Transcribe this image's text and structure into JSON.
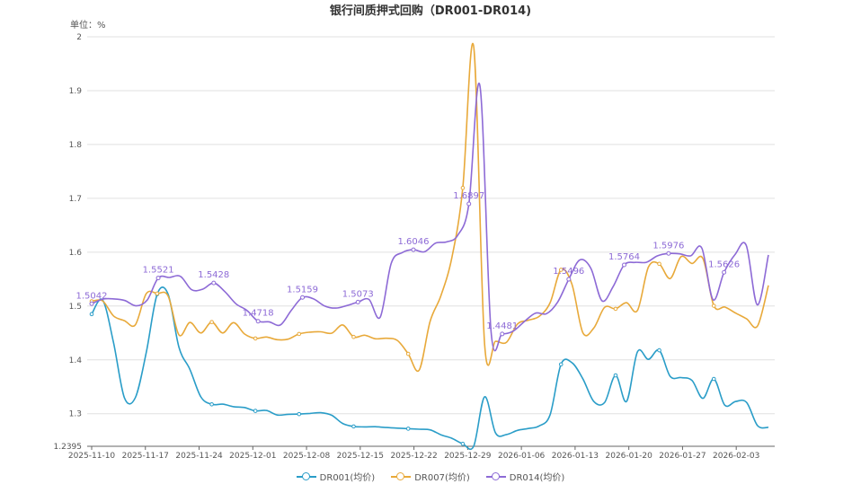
{
  "chart_data": {
    "type": "line",
    "title": "银行间质押式回购（DR001-DR014)",
    "unit_label": "单位：%",
    "ylim": [
      1.2395,
      2.0
    ],
    "y_ticks": [
      "1.2395",
      "1.3",
      "1.4",
      "1.5",
      "1.6",
      "1.7",
      "1.8",
      "1.9",
      "2"
    ],
    "x_ticks": [
      "2025-11-10",
      "2025-11-17",
      "2025-11-24",
      "2025-12-01",
      "2025-12-08",
      "2025-12-15",
      "2025-12-22",
      "2025-12-29",
      "2026-01-06",
      "2026-01-13",
      "2026-01-20",
      "2026-01-27",
      "2026-02-03"
    ],
    "grid": true,
    "legend_position": "bottom-center",
    "series": [
      {
        "name": "DR001(均价)",
        "color": "#2a9dc8",
        "values": [
          1.4849,
          1.5113,
          1.4323,
          1.3298,
          1.3299,
          1.4135,
          1.5219,
          1.5221,
          1.4229,
          1.3823,
          1.3313,
          1.3174,
          1.3177,
          1.3131,
          1.3115,
          1.3052,
          1.3061,
          1.2976,
          1.2988,
          1.2993,
          1.3006,
          1.3018,
          1.2971,
          1.2818,
          1.2764,
          1.2756,
          1.2758,
          1.2743,
          1.2732,
          1.2722,
          1.2712,
          1.2701,
          1.2608,
          1.2543,
          1.2441,
          1.2399,
          1.3314,
          1.2642,
          1.2613,
          1.2691,
          1.2725,
          1.2773,
          1.2982,
          1.3917,
          1.3948,
          1.3649,
          1.3228,
          1.3211,
          1.3712,
          1.3227,
          1.4151,
          1.4009,
          1.4178,
          1.3695,
          1.3671,
          1.3618,
          1.3286,
          1.3646,
          1.3159,
          1.3228,
          1.3209,
          1.2779,
          1.2746
        ],
        "labels": []
      },
      {
        "name": "DR007(均价)",
        "color": "#e8a93a",
        "values": [
          1.5088,
          1.5097,
          1.4817,
          1.4729,
          1.4651,
          1.5229,
          1.5232,
          1.5187,
          1.4462,
          1.4695,
          1.4499,
          1.4702,
          1.4499,
          1.4692,
          1.4482,
          1.4398,
          1.4424,
          1.4375,
          1.4385,
          1.4481,
          1.4514,
          1.4521,
          1.4496,
          1.4648,
          1.4426,
          1.4458,
          1.4392,
          1.4401,
          1.4362,
          1.4111,
          1.3809,
          1.4712,
          1.5194,
          1.5901,
          1.7194,
          1.9813,
          1.4291,
          1.4345,
          1.4326,
          1.4665,
          1.4736,
          1.4808,
          1.5061,
          1.5673,
          1.5403,
          1.4505,
          1.4592,
          1.4977,
          1.4948,
          1.5062,
          1.4918,
          1.5722,
          1.5783,
          1.5511,
          1.5917,
          1.5791,
          1.5882,
          1.5005,
          1.4981,
          1.4868,
          1.4761,
          1.4629,
          1.5384
        ],
        "labels": []
      },
      {
        "name": "DR014(均价)",
        "color": "#8d6ad6",
        "values": [
          1.5042,
          1.5128,
          1.5132,
          1.5102,
          1.5003,
          1.5109,
          1.5521,
          1.5531,
          1.5551,
          1.5304,
          1.5312,
          1.5428,
          1.5269,
          1.5041,
          1.4919,
          1.4718,
          1.4707,
          1.4648,
          1.4921,
          1.5159,
          1.5132,
          1.5001,
          1.4961,
          1.5009,
          1.5073,
          1.5122,
          1.4791,
          1.5793,
          1.5993,
          1.6046,
          1.6007,
          1.6169,
          1.6191,
          1.6316,
          1.6897,
          1.9089,
          1.4523,
          1.4481,
          1.4535,
          1.4712,
          1.4869,
          1.4858,
          1.5073,
          1.5496,
          1.5855,
          1.5698,
          1.5097,
          1.5361,
          1.5764,
          1.5811,
          1.5812,
          1.5933,
          1.5976,
          1.5969,
          1.5932,
          1.6076,
          1.5119,
          1.5626,
          1.5961,
          1.6127,
          1.5021,
          1.5949
        ],
        "labels": [
          {
            "i": 0,
            "text": "1.5042"
          },
          {
            "i": 6,
            "text": "1.5521"
          },
          {
            "i": 11,
            "text": "1.5428"
          },
          {
            "i": 15,
            "text": "1.4718"
          },
          {
            "i": 19,
            "text": "1.5159"
          },
          {
            "i": 24,
            "text": "1.5073"
          },
          {
            "i": 29,
            "text": "1.6046"
          },
          {
            "i": 34,
            "text": "1.6897"
          },
          {
            "i": 37,
            "text": "1.4481"
          },
          {
            "i": 43,
            "text": "1.5496"
          },
          {
            "i": 48,
            "text": "1.5764"
          },
          {
            "i": 52,
            "text": "1.5976"
          },
          {
            "i": 57,
            "text": "1.5626"
          }
        ]
      }
    ]
  }
}
